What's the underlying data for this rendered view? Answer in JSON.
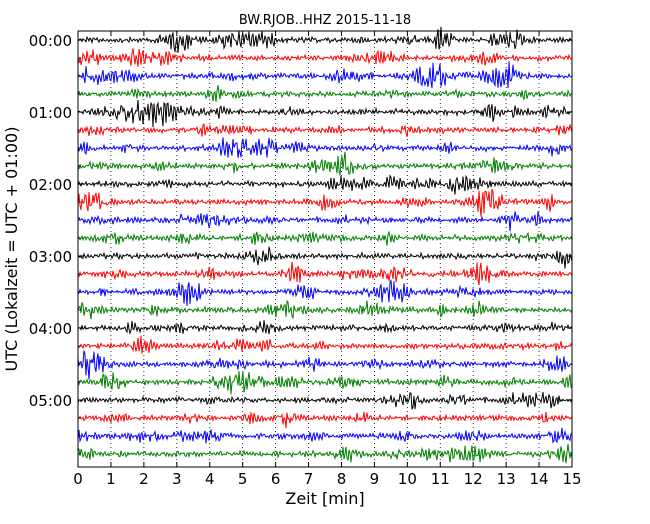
{
  "chart_data": {
    "type": "line",
    "title": "BW.RJOB..HHZ 2015-11-18",
    "xlabel": "Zeit  [min]",
    "ylabel": "UTC (Lokalzeit = UTC + 01:00)",
    "xlim": [
      0,
      15
    ],
    "x_ticks": [
      0,
      1,
      2,
      3,
      4,
      5,
      6,
      7,
      8,
      9,
      10,
      11,
      12,
      13,
      14,
      15
    ],
    "x_tick_labels": [
      "0",
      "1",
      "2",
      "3",
      "4",
      "5",
      "6",
      "7",
      "8",
      "9",
      "10",
      "11",
      "12",
      "13",
      "14",
      "15"
    ],
    "y_tick_labels": [
      "00:00",
      "01:00",
      "02:00",
      "03:00",
      "04:00",
      "05:00"
    ],
    "trace_interval_min": 15,
    "trace_count": 24,
    "color_cycle": [
      "#000000",
      "#ff0000",
      "#0000ff",
      "#008000"
    ],
    "grid": "vertical dotted at each minute",
    "series_description": "Seismogram traces of station BW.RJOB, channel HHZ; one trace per 15-minute window, colors cycling black, red, blue, green"
  }
}
